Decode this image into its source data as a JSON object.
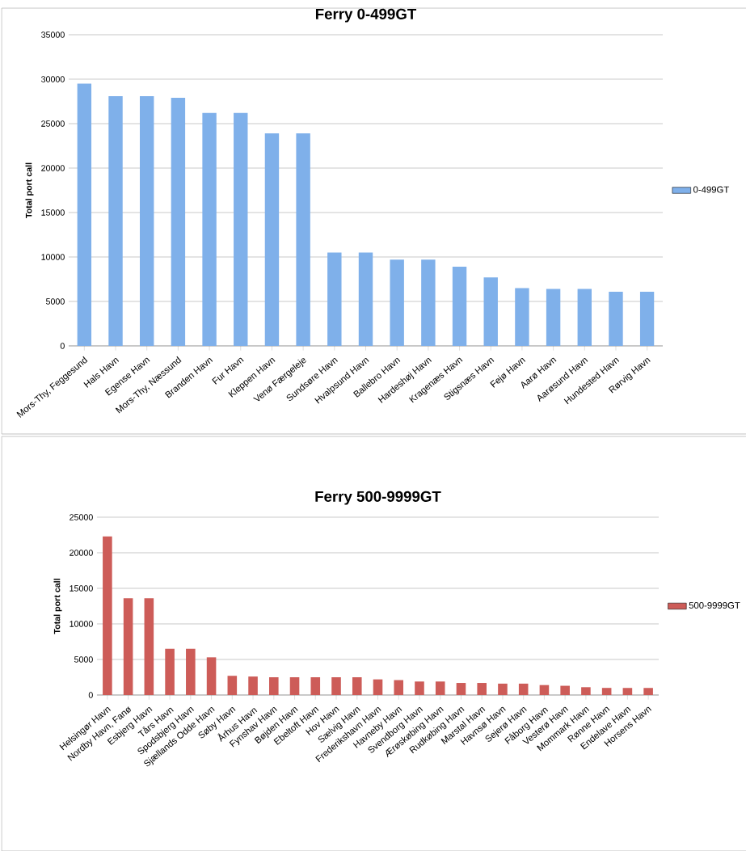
{
  "chart_data": [
    {
      "type": "bar",
      "title": "Ferry 0-499GT",
      "ylabel": "Total port call",
      "categories": [
        "Mors-Thy, Feggesund",
        "Hals Havn",
        "Egense Havn",
        "Mors-Thy, Næssund",
        "Branden Havn",
        "Fur Havn",
        "Kleppen Havn",
        "Venø Færgeleje",
        "Sundsøre Havn",
        "Hvalpsund Havn",
        "Ballebro Havn",
        "Hardeshøj Havn",
        "Kragenæs Havn",
        "Stigsnæs Havn",
        "Fejø Havn",
        "Aarø Havn",
        "Aarøsund Havn",
        "Hundested Havn",
        "Rørvig Havn"
      ],
      "series": [
        {
          "name": "0-499GT",
          "color": "#7fb0ea",
          "values": [
            29500,
            28100,
            28100,
            27900,
            26200,
            26200,
            23900,
            23900,
            10500,
            10500,
            9700,
            9700,
            8900,
            7700,
            6500,
            6400,
            6400,
            6100,
            6100
          ]
        }
      ],
      "ylim": [
        0,
        35000
      ],
      "yticks": [
        0,
        5000,
        10000,
        15000,
        20000,
        25000,
        30000,
        35000
      ],
      "grid": "y",
      "legend": "right"
    },
    {
      "type": "bar",
      "title": "Ferry 500-9999GT",
      "ylabel": "Total port call",
      "categories": [
        "Helsingør Havn",
        "Nordby Havn, Fanø",
        "Esbjerg Havn",
        "Tårs Havn",
        "Spodsbjerg Havn",
        "Sjællands Odde Havn",
        "Søby Havn",
        "Århus Havn",
        "Fynshav Havn",
        "Bøjden Havn",
        "Ebeltoft Havn",
        "Hov Havn",
        "Sælvig Havn",
        "Frederikshavn Havn",
        "Havneby Havn",
        "Svendborg Havn",
        "Ærøskøbing Havn",
        "Rudkøbing Havn",
        "Marstal Havn",
        "Havnsø Havn",
        "Sejerø Havn",
        "Fåborg Havn",
        "Vesterø Havn",
        "Mommark Havn",
        "Rønne Havn",
        "Endelave Havn",
        "Horsens Havn"
      ],
      "series": [
        {
          "name": "500-9999GT",
          "color": "#cd5c58",
          "values": [
            22300,
            13600,
            13600,
            6500,
            6500,
            5300,
            2700,
            2600,
            2500,
            2500,
            2500,
            2500,
            2500,
            2200,
            2100,
            1900,
            1900,
            1700,
            1700,
            1600,
            1600,
            1400,
            1300,
            1100,
            1000,
            1000,
            1000
          ]
        }
      ],
      "ylim": [
        0,
        25000
      ],
      "yticks": [
        0,
        5000,
        10000,
        15000,
        20000,
        25000
      ],
      "grid": "y",
      "legend": "right"
    }
  ]
}
